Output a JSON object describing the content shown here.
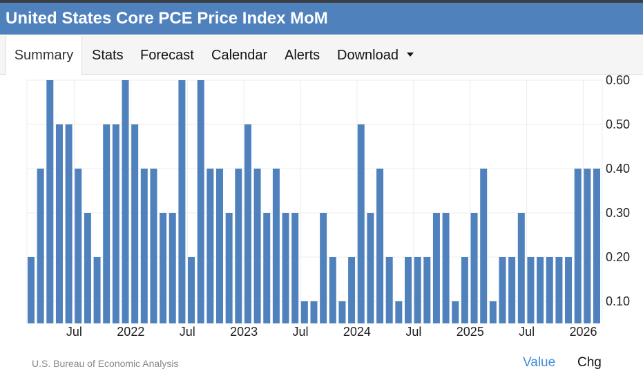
{
  "title": "United States Core PCE Price Index MoM",
  "tabs": [
    {
      "label": "Summary",
      "active": true
    },
    {
      "label": "Stats"
    },
    {
      "label": "Forecast"
    },
    {
      "label": "Calendar"
    },
    {
      "label": "Alerts"
    },
    {
      "label": "Download",
      "dropdown": true
    }
  ],
  "source": "U.S. Bureau of Economic Analysis",
  "footer_buttons": {
    "value": "Value",
    "chg": "Chg"
  },
  "colors": {
    "header": "#4f81bd",
    "bar": "#4f81bd",
    "link": "#3d8fd6"
  },
  "chart_data": {
    "type": "bar",
    "title": "United States Core PCE Price Index MoM",
    "ylim": [
      0.05,
      0.6
    ],
    "yticks": [
      0.1,
      0.2,
      0.3,
      0.4,
      0.5,
      0.6
    ],
    "ytick_labels": [
      "0.10",
      "0.20",
      "0.30",
      "0.40",
      "0.50",
      "0.60"
    ],
    "y_axis_position": "right",
    "grid": true,
    "xtick_labels": [
      {
        "label": "Jul",
        "index": 5
      },
      {
        "label": "2022",
        "index": 11
      },
      {
        "label": "Jul",
        "index": 17
      },
      {
        "label": "2023",
        "index": 23
      },
      {
        "label": "Jul",
        "index": 29
      },
      {
        "label": "2024",
        "index": 35
      },
      {
        "label": "Jul",
        "index": 41
      },
      {
        "label": "2025",
        "index": 47
      },
      {
        "label": "Jul",
        "index": 53
      },
      {
        "label": "2026",
        "index": 59
      }
    ],
    "values": [
      0.2,
      0.4,
      0.6,
      0.5,
      0.5,
      0.4,
      0.3,
      0.2,
      0.5,
      0.5,
      0.6,
      0.5,
      0.4,
      0.4,
      0.3,
      0.3,
      0.6,
      0.2,
      0.6,
      0.4,
      0.4,
      0.3,
      0.4,
      0.5,
      0.4,
      0.3,
      0.4,
      0.3,
      0.3,
      0.1,
      0.1,
      0.3,
      0.2,
      0.1,
      0.2,
      0.5,
      0.3,
      0.4,
      0.2,
      0.1,
      0.2,
      0.2,
      0.2,
      0.3,
      0.3,
      0.1,
      0.2,
      0.3,
      0.4,
      0.1,
      0.2,
      0.2,
      0.3,
      0.2,
      0.2,
      0.2,
      0.2,
      0.2,
      0.4,
      0.4,
      0.4
    ]
  }
}
